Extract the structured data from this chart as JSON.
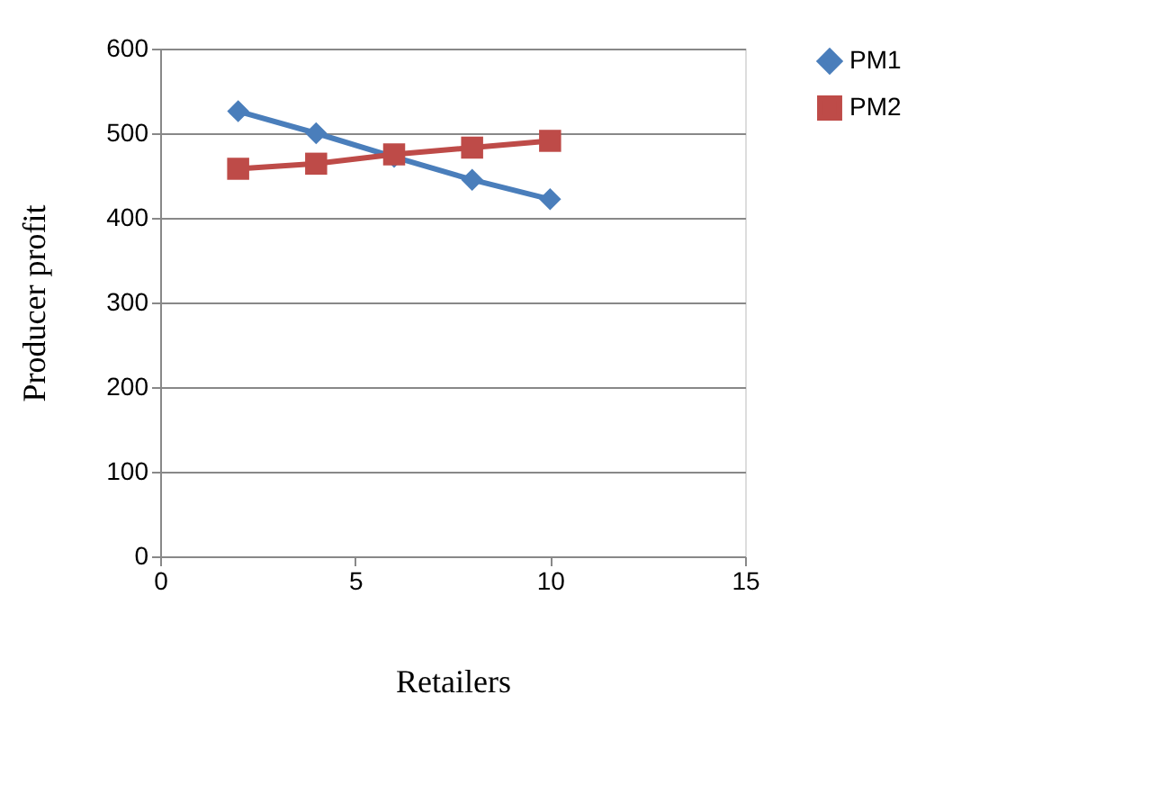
{
  "chart_data": {
    "type": "line",
    "xlabel": "Retailers",
    "ylabel": "Producer profit",
    "x": [
      2,
      4,
      6,
      8,
      10
    ],
    "series": [
      {
        "name": "PM1",
        "color": "#4a7ebb",
        "marker": "diamond",
        "values": [
          526,
          500,
          472,
          445,
          422
        ]
      },
      {
        "name": "PM2",
        "color": "#be4b48",
        "marker": "square",
        "values": [
          458,
          464,
          475,
          483,
          491
        ]
      }
    ],
    "xlim": [
      0,
      15
    ],
    "xticks": [
      0,
      5,
      10,
      15
    ],
    "ylim": [
      0,
      600
    ],
    "yticks": [
      0,
      100,
      200,
      300,
      400,
      500,
      600
    ],
    "grid": "y",
    "legend": "right",
    "line_style": "solid"
  }
}
